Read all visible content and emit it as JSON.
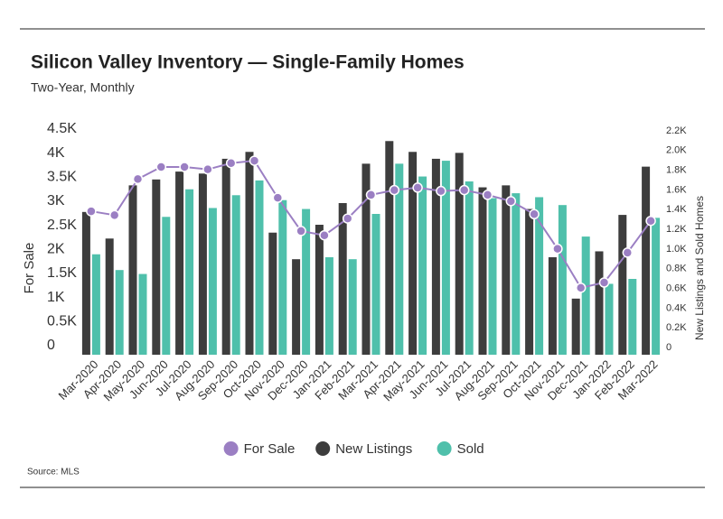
{
  "chart_data": {
    "type": "bar",
    "title": "Silicon Valley Inventory — Single-Family Homes",
    "subtitle": "Two-Year, Monthly",
    "y_label": "For Sale",
    "y2_label": "New Listings and Sold Homes",
    "source": "Source: MLS",
    "categories": [
      "Mar-2020",
      "Apr-2020",
      "May-2020",
      "Jun-2020",
      "Jul-2020",
      "Aug-2020",
      "Sep-2020",
      "Oct-2020",
      "Nov-2020",
      "Dec-2020",
      "Jan-2021",
      "Feb-2021",
      "Mar-2021",
      "Apr-2021",
      "May-2021",
      "Jun-2021",
      "Jul-2021",
      "Aug-2021",
      "Sep-2021",
      "Oct-2021",
      "Nov-2021",
      "Dec-2021",
      "Jan-2022",
      "Feb-2022",
      "Mar-2022"
    ],
    "series": [
      {
        "name": "For Sale",
        "type": "line",
        "axis": "y",
        "color": "#9b7fc3",
        "values": [
          2980,
          2900,
          3650,
          3900,
          3900,
          3850,
          3980,
          4030,
          3260,
          2570,
          2480,
          2830,
          3320,
          3420,
          3470,
          3400,
          3420,
          3320,
          3190,
          2920,
          2200,
          1390,
          1500,
          2120,
          2780
        ]
      },
      {
        "name": "New Listings",
        "type": "bar",
        "axis": "y2",
        "color": "#3d3d3d",
        "values": [
          1450,
          1180,
          1720,
          1780,
          1860,
          1840,
          1990,
          2060,
          1240,
          970,
          1320,
          1540,
          1940,
          2170,
          2060,
          1990,
          2050,
          1700,
          1720,
          1480,
          990,
          570,
          1050,
          1420,
          1910
        ]
      },
      {
        "name": "Sold",
        "type": "bar",
        "axis": "y2",
        "color": "#4fc0ab",
        "values": [
          1020,
          860,
          820,
          1400,
          1680,
          1490,
          1620,
          1770,
          1570,
          1480,
          990,
          970,
          1430,
          1940,
          1810,
          1970,
          1760,
          1590,
          1640,
          1600,
          1520,
          1200,
          720,
          770,
          1390
        ]
      }
    ],
    "ylim": [
      0,
      4500
    ],
    "yticks": [
      0,
      {
        "value": 500,
        "label": "0.5K"
      },
      {
        "value": 1000,
        "label": "1K"
      },
      {
        "value": 1500,
        "label": "1.5K"
      },
      {
        "value": 2000,
        "label": "2K"
      },
      {
        "value": 2500,
        "label": "2.5K"
      },
      {
        "value": 3000,
        "label": "3K"
      },
      {
        "value": 3500,
        "label": "3.5K"
      },
      {
        "value": 4000,
        "label": "4K"
      },
      {
        "value": 4500,
        "label": "4.5K"
      }
    ],
    "y2lim": [
      0,
      2200
    ],
    "y2ticks": [
      0,
      {
        "value": 200,
        "label": "0.2K"
      },
      {
        "value": 400,
        "label": "0.4K"
      },
      {
        "value": 600,
        "label": "0.6K"
      },
      {
        "value": 800,
        "label": "0.8K"
      },
      {
        "value": 1000,
        "label": "1.0K"
      },
      {
        "value": 1200,
        "label": "1.2K"
      },
      {
        "value": 1400,
        "label": "1.4K"
      },
      {
        "value": 1600,
        "label": "1.6K"
      },
      {
        "value": 1800,
        "label": "1.8K"
      },
      {
        "value": 2000,
        "label": "2.0K"
      },
      {
        "value": 2200,
        "label": "2.2K"
      }
    ],
    "legend": "bottom"
  }
}
